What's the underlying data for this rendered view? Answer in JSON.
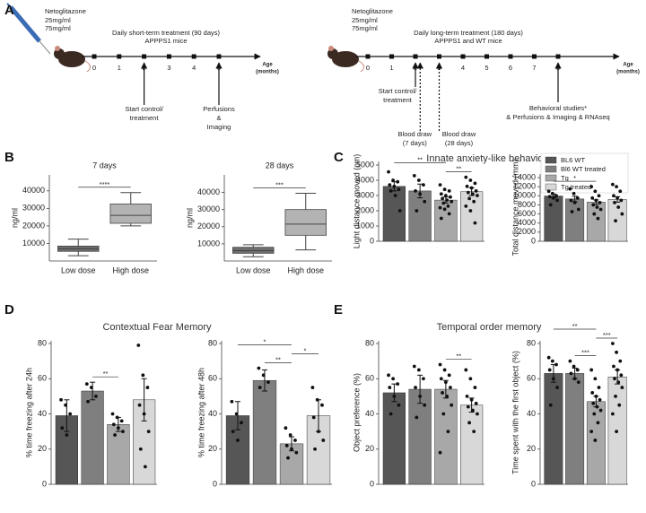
{
  "panel_labels": [
    "A",
    "B",
    "C",
    "D",
    "E"
  ],
  "timelines": [
    {
      "drug": "Netoglitazone",
      "doses": [
        "25mg/ml",
        "75mg/ml"
      ],
      "title": "Daily short-term treatment (90 days)",
      "subtitle": "APPPS1 mice",
      "ticks": [
        0,
        1,
        2,
        3,
        4,
        5
      ],
      "axis_label": [
        "Age",
        "(months)"
      ],
      "annotations": [
        {
          "at": 2,
          "style": "solid",
          "lines": [
            "Start control/",
            "treatment"
          ]
        },
        {
          "at": 5,
          "style": "solid",
          "lines": [
            "Perfusions",
            "&",
            "Imaging"
          ]
        }
      ]
    },
    {
      "drug": "Netoglitazone",
      "doses": [
        "25mg/ml",
        "75mg/ml"
      ],
      "title": "Daily long-term treatment (180 days)",
      "subtitle": "APPPS1 and WT mice",
      "ticks": [
        0,
        1,
        2,
        3,
        4,
        5,
        6,
        7,
        8
      ],
      "axis_label": [
        "Age",
        "(months)"
      ],
      "annotations": [
        {
          "at": 2,
          "style": "solid",
          "lines": [
            "Start control/",
            "treatment"
          ]
        },
        {
          "at": 2.2,
          "style": "dotted",
          "lines": [
            "Blood draw",
            "(7 days)"
          ]
        },
        {
          "at": 3,
          "style": "dotted",
          "lines": [
            "Blood draw",
            "(28 days)"
          ]
        },
        {
          "at": 8,
          "style": "solid",
          "lines": [
            "Behavioral studies*",
            "& Perfusions & Imaging & RNAseq"
          ]
        }
      ]
    }
  ],
  "panel_titles": {
    "C": "Innate anxiety-like behaviors",
    "D": "Contextual Fear Memory",
    "E": "Temporal order memory"
  },
  "groups": [
    {
      "name": "BL6 WT",
      "color": "#565656"
    },
    {
      "name": "Bl6 WT treated",
      "color": "#7f7f7f"
    },
    {
      "name": "Tg",
      "color": "#a8a8a8"
    },
    {
      "name": "Tg treated",
      "color": "#d8d8d8"
    }
  ],
  "chart_data": [
    {
      "type": "box",
      "title": "7 days",
      "ylabel": "ng/ml",
      "categories": [
        "Low dose",
        "High dose"
      ],
      "colors": [
        "#6e6e6e",
        "#b3b3b3"
      ],
      "boxes": [
        {
          "min": 3000,
          "q1": 5500,
          "median": 7000,
          "q3": 8500,
          "max": 12500
        },
        {
          "min": 20000,
          "q1": 21500,
          "median": 26000,
          "q3": 32500,
          "max": 39000
        }
      ],
      "ylim": [
        0,
        44000
      ],
      "yticks": [
        10000,
        20000,
        30000,
        40000
      ],
      "significance": [
        {
          "groups": [
            0,
            1
          ],
          "label": "****"
        }
      ]
    },
    {
      "type": "box",
      "title": "28 days",
      "ylabel": "ng/ml",
      "categories": [
        "Low dose",
        "High dose"
      ],
      "colors": [
        "#6e6e6e",
        "#b3b3b3"
      ],
      "boxes": [
        {
          "min": 2500,
          "q1": 4500,
          "median": 6000,
          "q3": 8000,
          "max": 9500
        },
        {
          "min": 6500,
          "q1": 15000,
          "median": 21500,
          "q3": 30000,
          "max": 39500
        }
      ],
      "ylim": [
        0,
        45000
      ],
      "yticks": [
        10000,
        20000,
        30000,
        40000
      ],
      "significance": [
        {
          "groups": [
            0,
            1
          ],
          "label": "***"
        }
      ]
    },
    {
      "type": "bar",
      "ylabel": "Light distance moved (cm)",
      "ylim": [
        0,
        5000
      ],
      "yticks": [
        0,
        1000,
        2000,
        3000,
        4000,
        5000
      ],
      "values": [
        3600,
        3300,
        2700,
        3250
      ],
      "errors": [
        300,
        450,
        200,
        250
      ],
      "points": [
        [
          4550,
          4000,
          3900,
          3700,
          3600,
          3400,
          3300,
          3000,
          2000
        ],
        [
          4300,
          4000,
          3700,
          3300,
          3100,
          2600,
          2000
        ],
        [
          3700,
          3400,
          3300,
          3100,
          3000,
          2900,
          2800,
          2700,
          2600,
          2500,
          2300,
          2200,
          2100,
          1800,
          1500
        ],
        [
          4200,
          4000,
          3800,
          3600,
          3500,
          3300,
          3200,
          3100,
          3000,
          2800,
          2600,
          2300,
          2000,
          1200
        ]
      ],
      "significance": [
        {
          "groups": [
            2,
            3
          ],
          "label": "**"
        },
        {
          "groups": [
            0,
            2
          ],
          "label": "**"
        }
      ]
    },
    {
      "type": "bar",
      "ylabel": "Total distance moved (mm)",
      "ylim": [
        0,
        14000
      ],
      "yticks": [
        0,
        2000,
        4000,
        6000,
        8000,
        10000,
        12000,
        14000
      ],
      "values": [
        9950,
        9300,
        8600,
        9200
      ],
      "errors": [
        400,
        600,
        500,
        600
      ],
      "points": [
        [
          11000,
          10500,
          10000,
          9800,
          9500,
          9000,
          8000
        ],
        [
          11500,
          10500,
          9500,
          9000,
          8500,
          7000,
          6500
        ],
        [
          12000,
          11000,
          10000,
          9500,
          9000,
          8500,
          8000,
          7500,
          7000,
          6000,
          5000
        ],
        [
          12500,
          12000,
          11000,
          10000,
          9500,
          9000,
          8500,
          7500,
          6000,
          4500
        ]
      ],
      "significance": [
        {
          "groups": [
            0,
            2
          ],
          "label": "*"
        }
      ]
    },
    {
      "type": "bar",
      "ylabel": "% time freezing after 24h",
      "ylim": [
        0,
        80
      ],
      "yticks": [
        0,
        20,
        40,
        60,
        80
      ],
      "values": [
        39,
        53,
        34,
        48
      ],
      "errors": [
        9,
        5,
        4,
        12
      ],
      "points": [
        [
          48,
          45,
          40,
          32,
          28
        ],
        [
          57,
          55,
          50,
          47
        ],
        [
          40,
          38,
          36,
          34,
          32,
          30,
          28
        ],
        [
          79,
          62,
          55,
          45,
          40,
          30,
          20,
          10
        ]
      ],
      "significance": [
        {
          "groups": [
            1,
            2
          ],
          "label": "**"
        }
      ]
    },
    {
      "type": "bar",
      "ylabel": "% time freezing after 48h",
      "ylim": [
        0,
        80
      ],
      "yticks": [
        0,
        20,
        40,
        60,
        80
      ],
      "values": [
        39,
        59,
        23,
        39
      ],
      "errors": [
        8,
        6,
        4,
        9
      ],
      "points": [
        [
          47,
          40,
          35,
          30,
          25
        ],
        [
          66,
          62,
          58,
          55
        ],
        [
          32,
          28,
          25,
          22,
          20,
          18,
          15
        ],
        [
          55,
          48,
          45,
          38,
          30,
          25,
          20
        ]
      ],
      "significance": [
        {
          "groups": [
            1,
            2
          ],
          "label": "**"
        },
        {
          "groups": [
            2,
            3
          ],
          "label": "*"
        },
        {
          "groups": [
            0,
            2
          ],
          "label": "*"
        }
      ]
    },
    {
      "type": "bar",
      "ylabel": "Object preference (%)",
      "ylim": [
        0,
        80
      ],
      "yticks": [
        0,
        20,
        40,
        60,
        80
      ],
      "values": [
        52,
        54,
        54,
        45
      ],
      "errors": [
        5,
        8,
        5,
        4
      ],
      "points": [
        [
          62,
          60,
          57,
          55,
          50,
          45,
          40
        ],
        [
          67,
          65,
          60,
          55,
          50,
          45,
          38
        ],
        [
          68,
          65,
          62,
          60,
          58,
          55,
          52,
          50,
          45,
          40,
          30,
          18
        ],
        [
          65,
          60,
          55,
          50,
          48,
          46,
          44,
          42,
          40,
          35,
          30
        ]
      ],
      "significance": [
        {
          "groups": [
            2,
            3
          ],
          "label": "**"
        }
      ]
    },
    {
      "type": "bar",
      "ylabel": "Time spent with the first object (%)",
      "ylim": [
        0,
        80
      ],
      "yticks": [
        0,
        20,
        40,
        60,
        80
      ],
      "values": [
        63,
        63,
        47,
        61
      ],
      "errors": [
        5,
        3,
        3,
        4
      ],
      "points": [
        [
          72,
          70,
          68,
          65,
          60,
          55,
          45
        ],
        [
          70,
          67,
          65,
          63,
          60,
          58
        ],
        [
          65,
          60,
          55,
          52,
          50,
          48,
          46,
          44,
          42,
          40,
          35,
          30,
          25
        ],
        [
          80,
          75,
          70,
          67,
          65,
          62,
          60,
          58,
          55,
          50,
          45,
          40,
          30
        ]
      ],
      "significance": [
        {
          "groups": [
            1,
            2
          ],
          "label": "***"
        },
        {
          "groups": [
            2,
            3
          ],
          "label": "***"
        },
        {
          "groups": [
            0,
            2
          ],
          "label": "**"
        }
      ]
    }
  ]
}
